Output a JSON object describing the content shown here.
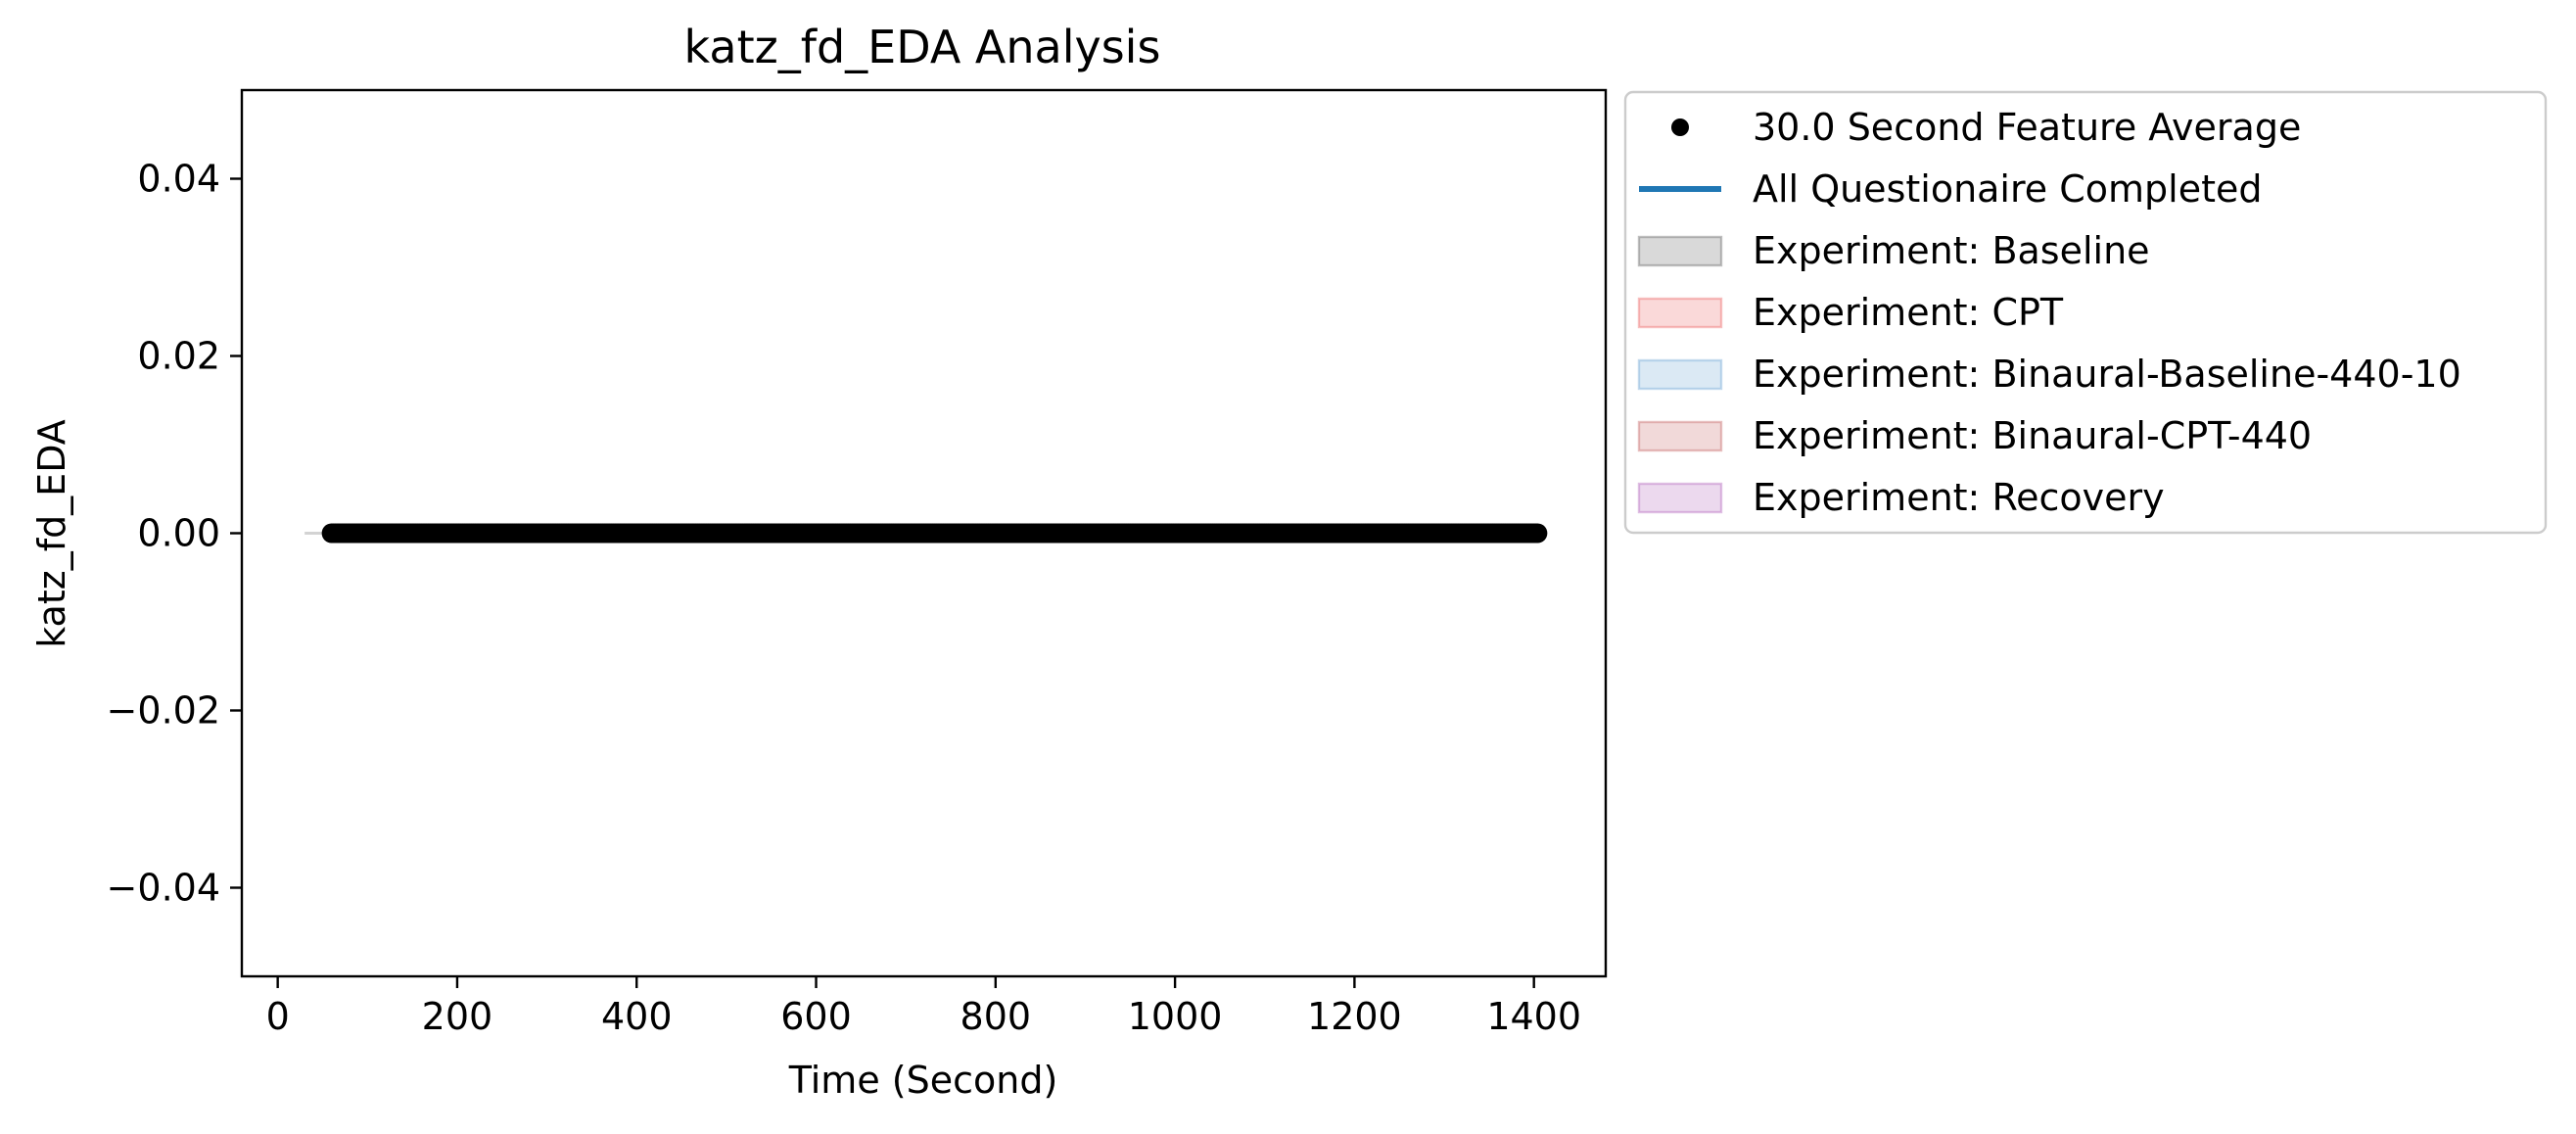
{
  "chart_data": {
    "type": "scatter",
    "title": "katz_fd_EDA Analysis",
    "xlabel": "Time (Second)",
    "ylabel": "katz_fd_EDA",
    "xlim": [
      -40,
      1480
    ],
    "ylim": [
      -0.05,
      0.05
    ],
    "x_ticks": [
      {
        "value": 0,
        "label": "0"
      },
      {
        "value": 200,
        "label": "200"
      },
      {
        "value": 400,
        "label": "400"
      },
      {
        "value": 600,
        "label": "600"
      },
      {
        "value": 800,
        "label": "800"
      },
      {
        "value": 1000,
        "label": "1000"
      },
      {
        "value": 1200,
        "label": "1200"
      },
      {
        "value": 1400,
        "label": "1400"
      }
    ],
    "y_ticks": [
      {
        "value": 0.04,
        "label": "0.04"
      },
      {
        "value": 0.02,
        "label": "0.02"
      },
      {
        "value": 0.0,
        "label": "0.00"
      },
      {
        "value": -0.02,
        "label": "−0.02"
      },
      {
        "value": -0.04,
        "label": "−0.04"
      }
    ],
    "grid": false,
    "legend_position": "outside-right-top",
    "series": [
      {
        "name": "30.0 Second Feature Average",
        "kind": "scatter",
        "color": "#000000",
        "x_start": 60,
        "x_end": 1405,
        "x_step": 2,
        "y": 0.0
      },
      {
        "name": "All Questionaire Completed",
        "kind": "line",
        "color": "#1f77b4",
        "x": [],
        "y": []
      },
      {
        "name": "Experiment: Baseline",
        "kind": "span",
        "color": "#808080",
        "x_range": [
          30,
          60
        ]
      },
      {
        "name": "Experiment: CPT",
        "kind": "span",
        "color": "#f08080"
      },
      {
        "name": "Experiment: Binaural-Baseline-440-10",
        "kind": "span",
        "color": "#87b5dc"
      },
      {
        "name": "Experiment: Binaural-CPT-440",
        "kind": "span",
        "color": "#d08080"
      },
      {
        "name": "Experiment: Recovery",
        "kind": "span",
        "color": "#c080c8"
      }
    ]
  }
}
